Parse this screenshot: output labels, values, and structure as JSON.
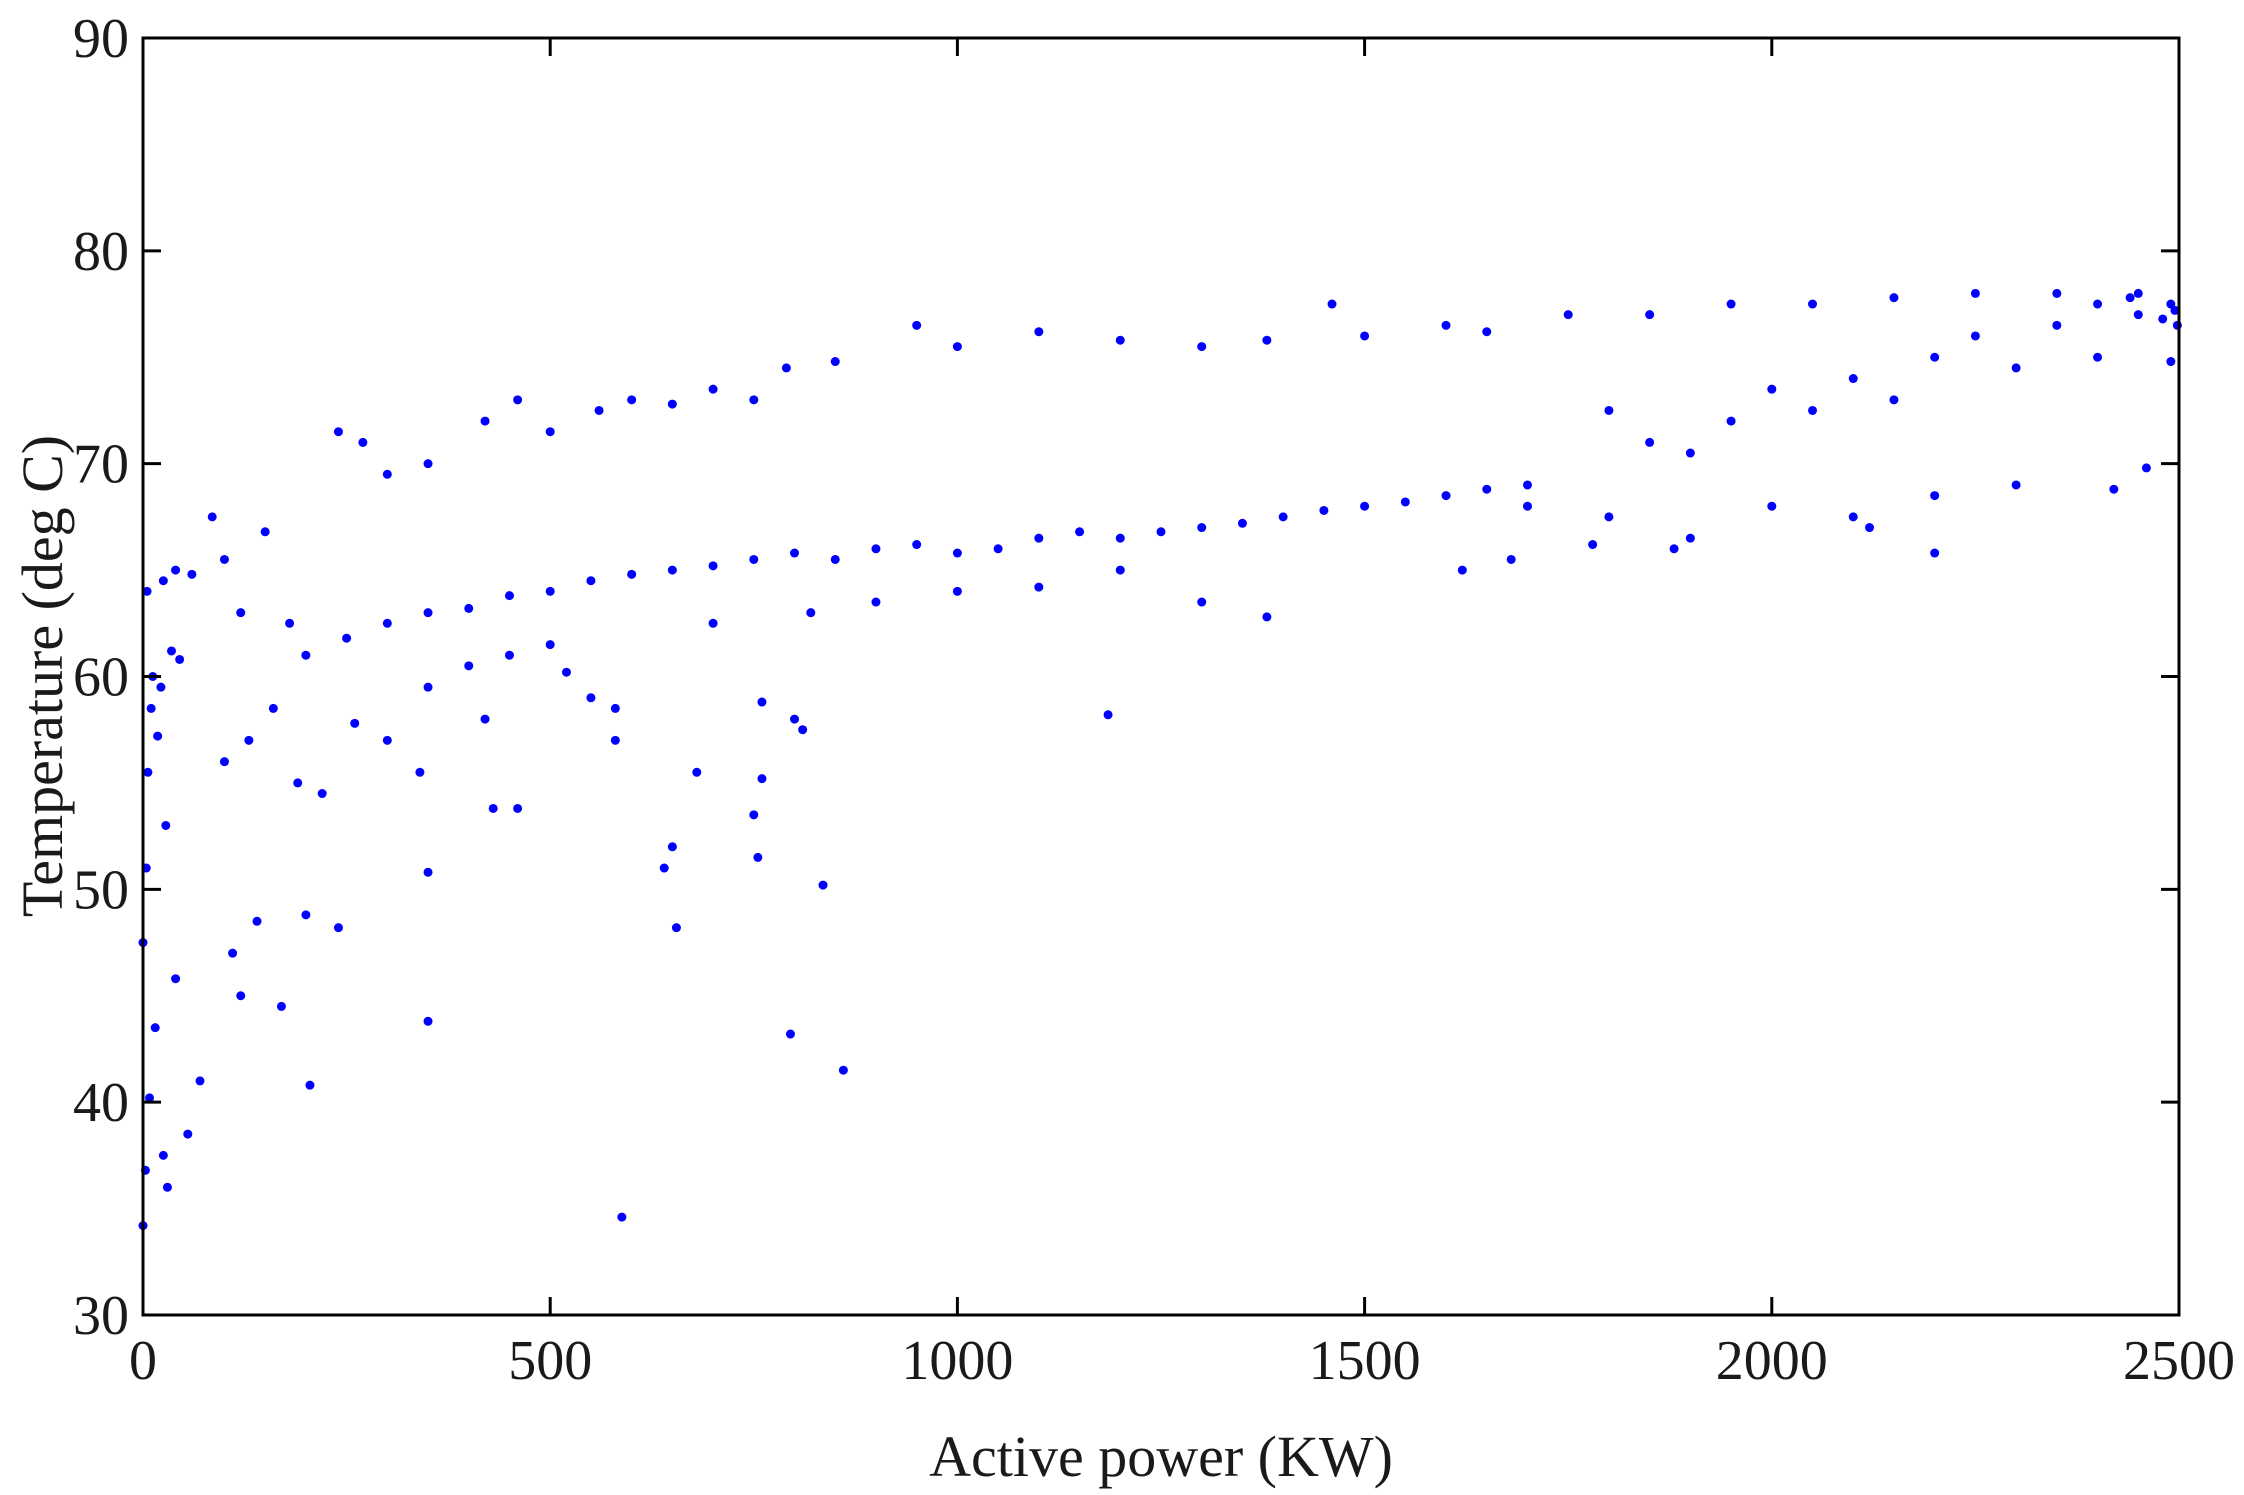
{
  "chart_data": {
    "type": "scatter",
    "title": "",
    "xlabel": "Active power (KW)",
    "ylabel": "Temperature (deg C)",
    "xlim": [
      0,
      2500
    ],
    "ylim": [
      30,
      90
    ],
    "xticks": [
      0,
      500,
      1000,
      1500,
      2000,
      2500
    ],
    "yticks": [
      30,
      40,
      50,
      60,
      70,
      80,
      90
    ],
    "grid": false,
    "legend": "none",
    "marker_color": "#0000ff",
    "series": [
      {
        "points": [
          [
            0,
            34.2
          ],
          [
            3,
            36.8
          ],
          [
            8,
            40.2
          ],
          [
            15,
            43.5
          ],
          [
            25,
            37.5
          ],
          [
            30,
            36.0
          ],
          [
            40,
            45.8
          ],
          [
            55,
            38.5
          ],
          [
            70,
            41.0
          ],
          [
            0,
            47.5
          ],
          [
            4,
            51.0
          ],
          [
            6,
            55.5
          ],
          [
            10,
            58.5
          ],
          [
            12,
            60.0
          ],
          [
            18,
            57.2
          ],
          [
            22,
            59.5
          ],
          [
            28,
            53.0
          ],
          [
            35,
            61.2
          ],
          [
            45,
            60.8
          ],
          [
            5,
            64.0
          ],
          [
            25,
            64.5
          ],
          [
            40,
            65.0
          ],
          [
            60,
            64.8
          ],
          [
            85,
            67.5
          ],
          [
            100,
            65.5
          ],
          [
            120,
            63.0
          ],
          [
            150,
            66.8
          ],
          [
            180,
            62.5
          ],
          [
            100,
            56.0
          ],
          [
            130,
            57.0
          ],
          [
            160,
            58.5
          ],
          [
            190,
            55.0
          ],
          [
            220,
            54.5
          ],
          [
            260,
            57.8
          ],
          [
            300,
            57.0
          ],
          [
            340,
            55.5
          ],
          [
            110,
            47.0
          ],
          [
            140,
            48.5
          ],
          [
            120,
            45.0
          ],
          [
            170,
            44.5
          ],
          [
            200,
            48.8
          ],
          [
            240,
            48.2
          ],
          [
            205,
            40.8
          ],
          [
            200,
            61.0
          ],
          [
            250,
            61.8
          ],
          [
            300,
            62.5
          ],
          [
            350,
            63.0
          ],
          [
            400,
            63.2
          ],
          [
            450,
            63.8
          ],
          [
            500,
            64.0
          ],
          [
            550,
            64.5
          ],
          [
            600,
            64.8
          ],
          [
            650,
            65.0
          ],
          [
            700,
            65.2
          ],
          [
            750,
            65.5
          ],
          [
            800,
            65.8
          ],
          [
            850,
            65.5
          ],
          [
            900,
            66.0
          ],
          [
            950,
            66.2
          ],
          [
            1000,
            65.8
          ],
          [
            1050,
            66.0
          ],
          [
            1100,
            66.5
          ],
          [
            1150,
            66.8
          ],
          [
            1200,
            66.5
          ],
          [
            1250,
            66.8
          ],
          [
            1300,
            67.0
          ],
          [
            1350,
            67.2
          ],
          [
            1400,
            67.5
          ],
          [
            1450,
            67.8
          ],
          [
            1500,
            68.0
          ],
          [
            1550,
            68.2
          ],
          [
            1600,
            68.5
          ],
          [
            1650,
            68.8
          ],
          [
            1700,
            69.0
          ],
          [
            240,
            71.5
          ],
          [
            270,
            71.0
          ],
          [
            300,
            69.5
          ],
          [
            350,
            70.0
          ],
          [
            420,
            72.0
          ],
          [
            460,
            73.0
          ],
          [
            500,
            71.5
          ],
          [
            560,
            72.5
          ],
          [
            600,
            73.0
          ],
          [
            650,
            72.8
          ],
          [
            700,
            73.5
          ],
          [
            750,
            73.0
          ],
          [
            790,
            74.5
          ],
          [
            850,
            74.8
          ],
          [
            950,
            76.5
          ],
          [
            1000,
            75.5
          ],
          [
            1100,
            76.2
          ],
          [
            1200,
            75.8
          ],
          [
            1300,
            75.5
          ],
          [
            1380,
            75.8
          ],
          [
            1460,
            77.5
          ],
          [
            1500,
            76.0
          ],
          [
            1600,
            76.5
          ],
          [
            1650,
            76.2
          ],
          [
            1750,
            77.0
          ],
          [
            1850,
            77.0
          ],
          [
            1950,
            77.5
          ],
          [
            2050,
            77.5
          ],
          [
            2150,
            77.8
          ],
          [
            2250,
            78.0
          ],
          [
            2350,
            78.0
          ],
          [
            2450,
            78.0
          ],
          [
            2490,
            77.5
          ],
          [
            1800,
            72.5
          ],
          [
            1850,
            71.0
          ],
          [
            1900,
            70.5
          ],
          [
            1950,
            72.0
          ],
          [
            2000,
            73.5
          ],
          [
            2050,
            72.5
          ],
          [
            2100,
            74.0
          ],
          [
            2150,
            73.0
          ],
          [
            2200,
            75.0
          ],
          [
            2250,
            76.0
          ],
          [
            2300,
            74.5
          ],
          [
            2350,
            76.5
          ],
          [
            2400,
            75.0
          ],
          [
            2450,
            77.0
          ],
          [
            2480,
            76.8
          ],
          [
            1700,
            68.0
          ],
          [
            1800,
            67.5
          ],
          [
            1900,
            66.5
          ],
          [
            2000,
            68.0
          ],
          [
            2100,
            67.5
          ],
          [
            2200,
            68.5
          ],
          [
            2300,
            69.0
          ],
          [
            2420,
            68.8
          ],
          [
            2460,
            69.8
          ],
          [
            1620,
            65.0
          ],
          [
            1680,
            65.5
          ],
          [
            1780,
            66.2
          ],
          [
            1880,
            66.0
          ],
          [
            2120,
            67.0
          ],
          [
            2200,
            65.8
          ],
          [
            700,
            62.5
          ],
          [
            820,
            63.0
          ],
          [
            900,
            63.5
          ],
          [
            1000,
            64.0
          ],
          [
            1100,
            64.2
          ],
          [
            1200,
            65.0
          ],
          [
            1300,
            63.5
          ],
          [
            1380,
            62.8
          ],
          [
            350,
            59.5
          ],
          [
            400,
            60.5
          ],
          [
            450,
            61.0
          ],
          [
            500,
            61.5
          ],
          [
            520,
            60.2
          ],
          [
            550,
            59.0
          ],
          [
            580,
            58.5
          ],
          [
            420,
            58.0
          ],
          [
            430,
            53.8
          ],
          [
            460,
            53.8
          ],
          [
            350,
            50.8
          ],
          [
            350,
            43.8
          ],
          [
            580,
            57.0
          ],
          [
            640,
            51.0
          ],
          [
            650,
            52.0
          ],
          [
            655,
            48.2
          ],
          [
            680,
            55.5
          ],
          [
            750,
            53.5
          ],
          [
            755,
            51.5
          ],
          [
            760,
            55.2
          ],
          [
            760,
            58.8
          ],
          [
            800,
            58.0
          ],
          [
            810,
            57.5
          ],
          [
            835,
            50.2
          ],
          [
            795,
            43.2
          ],
          [
            860,
            41.5
          ],
          [
            588,
            34.6
          ],
          [
            1185,
            58.2
          ],
          [
            2490,
            74.8
          ],
          [
            2495,
            77.2
          ],
          [
            2498,
            76.5
          ],
          [
            2440,
            77.8
          ],
          [
            2400,
            77.5
          ]
        ]
      }
    ]
  }
}
